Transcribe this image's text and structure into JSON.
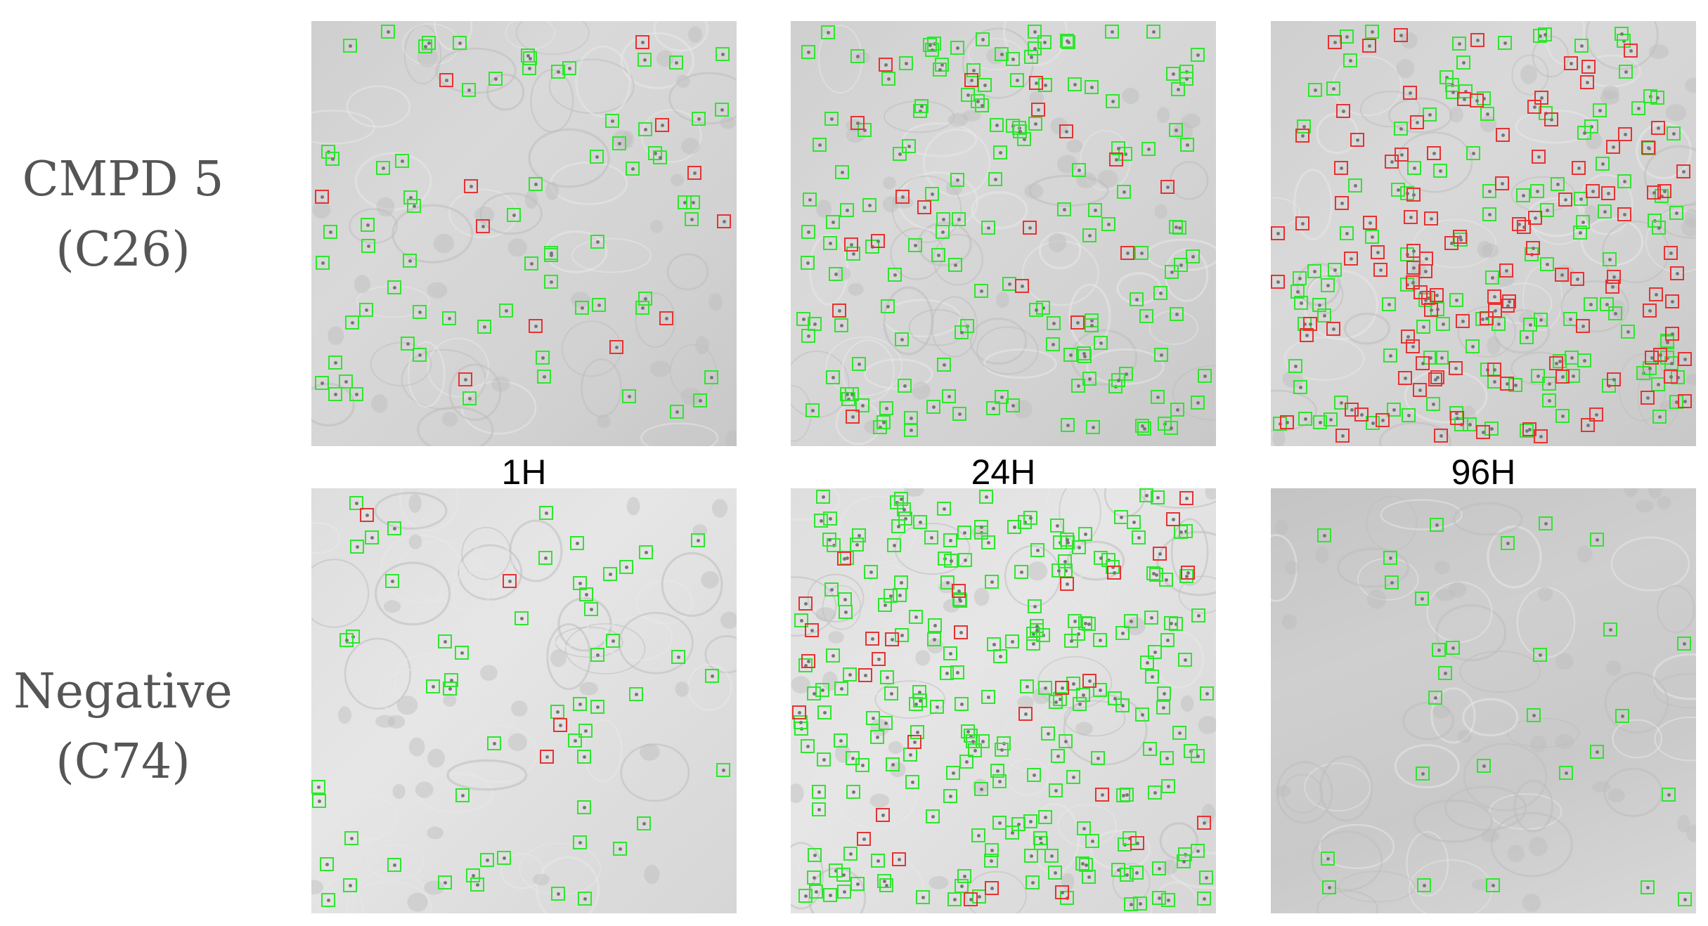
{
  "rows": [
    {
      "line1": "CMPD 5",
      "line2": "(C26)"
    },
    {
      "line1": "Negative",
      "line2": "(C74)"
    }
  ],
  "columns": [
    "1H",
    "24H",
    "96H"
  ],
  "colors": {
    "normal_box": "#2ee62e",
    "highlighted_box": "#e63232",
    "label_text": "#555555",
    "background": "#ffffff"
  },
  "panel_descriptions": {
    "image_type": "grayscale brightfield microscopy of cells with square detection boxes"
  }
}
